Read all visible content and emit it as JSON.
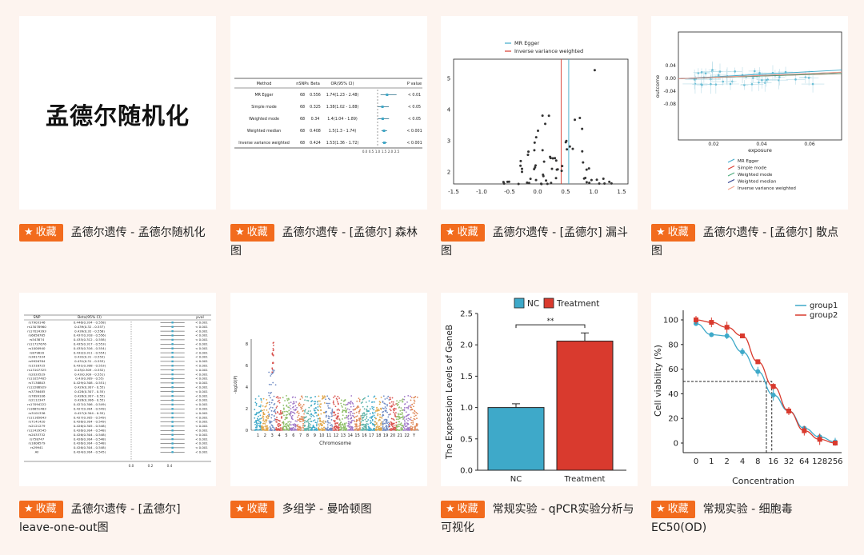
{
  "favorite_label": "收藏",
  "cards": [
    {
      "title": "孟德尔遗传 - 孟德尔随机化",
      "thumb_text": "孟德尔随机化"
    },
    {
      "title": "孟德尔遗传 - [孟德尔] 森林图"
    },
    {
      "title": "孟德尔遗传 - [孟德尔] 漏斗图"
    },
    {
      "title": "孟德尔遗传 - [孟德尔] 散点图"
    },
    {
      "title": "孟德尔遗传 - [孟德尔] leave-one-out图"
    },
    {
      "title": "多组学 - 曼哈顿图"
    },
    {
      "title": "常规实验 - qPCR实验分析与可视化"
    },
    {
      "title": "常规实验 - 细胞毒 EC50(OD)"
    }
  ],
  "colors": {
    "accent": "#f26b1d",
    "background": "#fdf4ef",
    "nc": "#3ea9c9",
    "treatment": "#d93a2e"
  },
  "forest": {
    "headers": [
      "Method",
      "nSNPs",
      "Beta",
      "OR(95% CI)",
      "P value"
    ],
    "rows": [
      [
        "MR Egger",
        "68",
        "0.556",
        "1.74(1.23 - 2.48)",
        "< 0.01"
      ],
      [
        "Simple mode",
        "68",
        "0.325",
        "1.38(1.02 - 1.88)",
        "< 0.05"
      ],
      [
        "Weighted mode",
        "68",
        "0.34",
        "1.4(1.04 - 1.89)",
        "< 0.05"
      ],
      [
        "Weighted median",
        "68",
        "0.408",
        "1.5(1.3 - 1.74)",
        "< 0.001"
      ],
      [
        "Inverse variance weighted",
        "68",
        "0.424",
        "1.53(1.36 - 1.72)",
        "< 0.001"
      ]
    ],
    "axis_ticks": [
      "0.0",
      "0.5",
      "1.0",
      "1.5",
      "2.0",
      "2.5"
    ]
  },
  "funnel": {
    "legend": [
      "MR Egger",
      "Inverse variance weighted"
    ],
    "x_ticks": [
      "-1.5",
      "-1.0",
      "-0.5",
      "0.0",
      "0.5",
      "1.0",
      "1.5"
    ],
    "y_ticks": [
      "2",
      "3",
      "4",
      "5"
    ]
  },
  "scatter": {
    "xlabel": "exposure",
    "ylabel": "outcome",
    "x_ticks": [
      "0.02",
      "0.04",
      "0.06"
    ],
    "y_ticks": [
      "0.04",
      "0.00",
      "-0.04",
      "-0.08"
    ],
    "legend": [
      "MR Egger",
      "Simple mode",
      "Weighted mode",
      "Weighted median",
      "Inverse variance weighted"
    ]
  },
  "loo": {
    "headers": [
      "SNP",
      "Beta(95% CI)",
      "pval"
    ],
    "rows": [
      [
        "rs7903146",
        "0.446(0.334 - 0.558)"
      ],
      [
        "rs13078960",
        "0.439(0.32 - 0.557)"
      ],
      [
        "rs17024393",
        "0.439(0.32 - 0.558)"
      ],
      [
        "rs6656785",
        "0.437(0.318 - 0.556)"
      ],
      [
        "rs543874",
        "0.435(0.312 - 0.558)"
      ],
      [
        "rs11727676",
        "0.435(0.317 - 0.553)"
      ],
      [
        "rs1000940",
        "0.435(0.316 - 0.554)"
      ],
      [
        "rs879620",
        "0.432(0.311 - 0.554)"
      ],
      [
        "rs3817334",
        "0.432(0.31 - 0.553)"
      ],
      [
        "rs9926784",
        "0.431(0.31 - 0.553)"
      ],
      [
        "rs1516725",
        "0.431(0.308 - 0.553)"
      ],
      [
        "rs13107325",
        "0.43(0.309 - 0.552)"
      ],
      [
        "rs2033529",
        "0.43(0.309 - 0.551)"
      ],
      [
        "rs11057405",
        "0.43(0.309 - 0.55)"
      ],
      [
        "rs7138803",
        "0.429(0.308 - 0.551)"
      ],
      [
        "rs12286929",
        "0.429(0.307 - 0.55)"
      ],
      [
        "rs3736485",
        "0.428(0.307 - 0.55)"
      ],
      [
        "rs7899106",
        "0.428(0.307 - 0.55)"
      ],
      [
        "rs2112347",
        "0.428(0.306 - 0.55)"
      ],
      [
        "rs17094222",
        "0.427(0.306 - 0.549)"
      ],
      [
        "rs16851483",
        "0.427(0.304 - 0.549)"
      ],
      [
        "rs3101336",
        "0.427(0.304 - 0.55)"
      ],
      [
        "rs11165643",
        "0.427(0.305 - 0.549)"
      ],
      [
        "rs7141420",
        "0.426(0.304 - 0.549)"
      ],
      [
        "rs2121279",
        "0.426(0.305 - 0.548)"
      ],
      [
        "rs12429545",
        "0.426(0.304 - 0.548)"
      ],
      [
        "rs2033732",
        "0.426(0.304 - 0.548)"
      ],
      [
        "rs758747",
        "0.426(0.304 - 0.548)"
      ],
      [
        "rs1808579",
        "0.426(0.304 - 0.548)"
      ],
      [
        "rs29941",
        "0.426(0.304 - 0.548)"
      ],
      [
        "All",
        "0.424(0.304 - 0.545)"
      ]
    ],
    "pval": "< 0.001",
    "axis_ticks": [
      "0.0",
      "0.2",
      "0.4"
    ]
  },
  "manhattan": {
    "xlabel": "Chromosome",
    "chromosomes": [
      "1",
      "2",
      "3",
      "4",
      "5",
      "6",
      "7",
      "8",
      "9",
      "10",
      "11",
      "12",
      "13",
      "14",
      "15",
      "16",
      "17",
      "18",
      "19",
      "20",
      "21",
      "22",
      "Y"
    ],
    "y_ticks": [
      "0",
      "2",
      "4",
      "6",
      "8"
    ]
  },
  "chart_data": [
    {
      "type": "bar",
      "title": "",
      "xlabel": "",
      "ylabel": "The Expression Levels of GeneB",
      "categories": [
        "NC",
        "Treatment"
      ],
      "values": [
        1.0,
        2.06
      ],
      "errors": [
        0.06,
        0.13
      ],
      "ylim": [
        0,
        2.5
      ],
      "y_ticks": [
        "0.0",
        "0.5",
        "1.0",
        "1.5",
        "2.0",
        "2.5"
      ],
      "legend": [
        "NC",
        "Treatment"
      ],
      "legend_position": "top",
      "annotation": "**"
    },
    {
      "type": "line",
      "title": "",
      "xlabel": "Concentration",
      "ylabel": "Cell viability (%)",
      "x": [
        0,
        1,
        2,
        4,
        8,
        16,
        32,
        64,
        128,
        256
      ],
      "x_ticks": [
        "0",
        "1",
        "2",
        "4",
        "8",
        "16",
        "32",
        "64",
        "128",
        "256"
      ],
      "series": [
        {
          "name": "group1",
          "values": [
            97,
            88,
            87,
            74,
            58,
            39,
            26,
            12,
            5,
            1
          ]
        },
        {
          "name": "group2",
          "values": [
            100,
            98,
            94,
            87,
            66,
            46,
            26,
            10,
            3,
            0
          ]
        }
      ],
      "ylim": [
        0,
        100
      ],
      "y_ticks": [
        "0",
        "20",
        "40",
        "60",
        "80",
        "100"
      ],
      "legend_position": "top-right"
    }
  ]
}
